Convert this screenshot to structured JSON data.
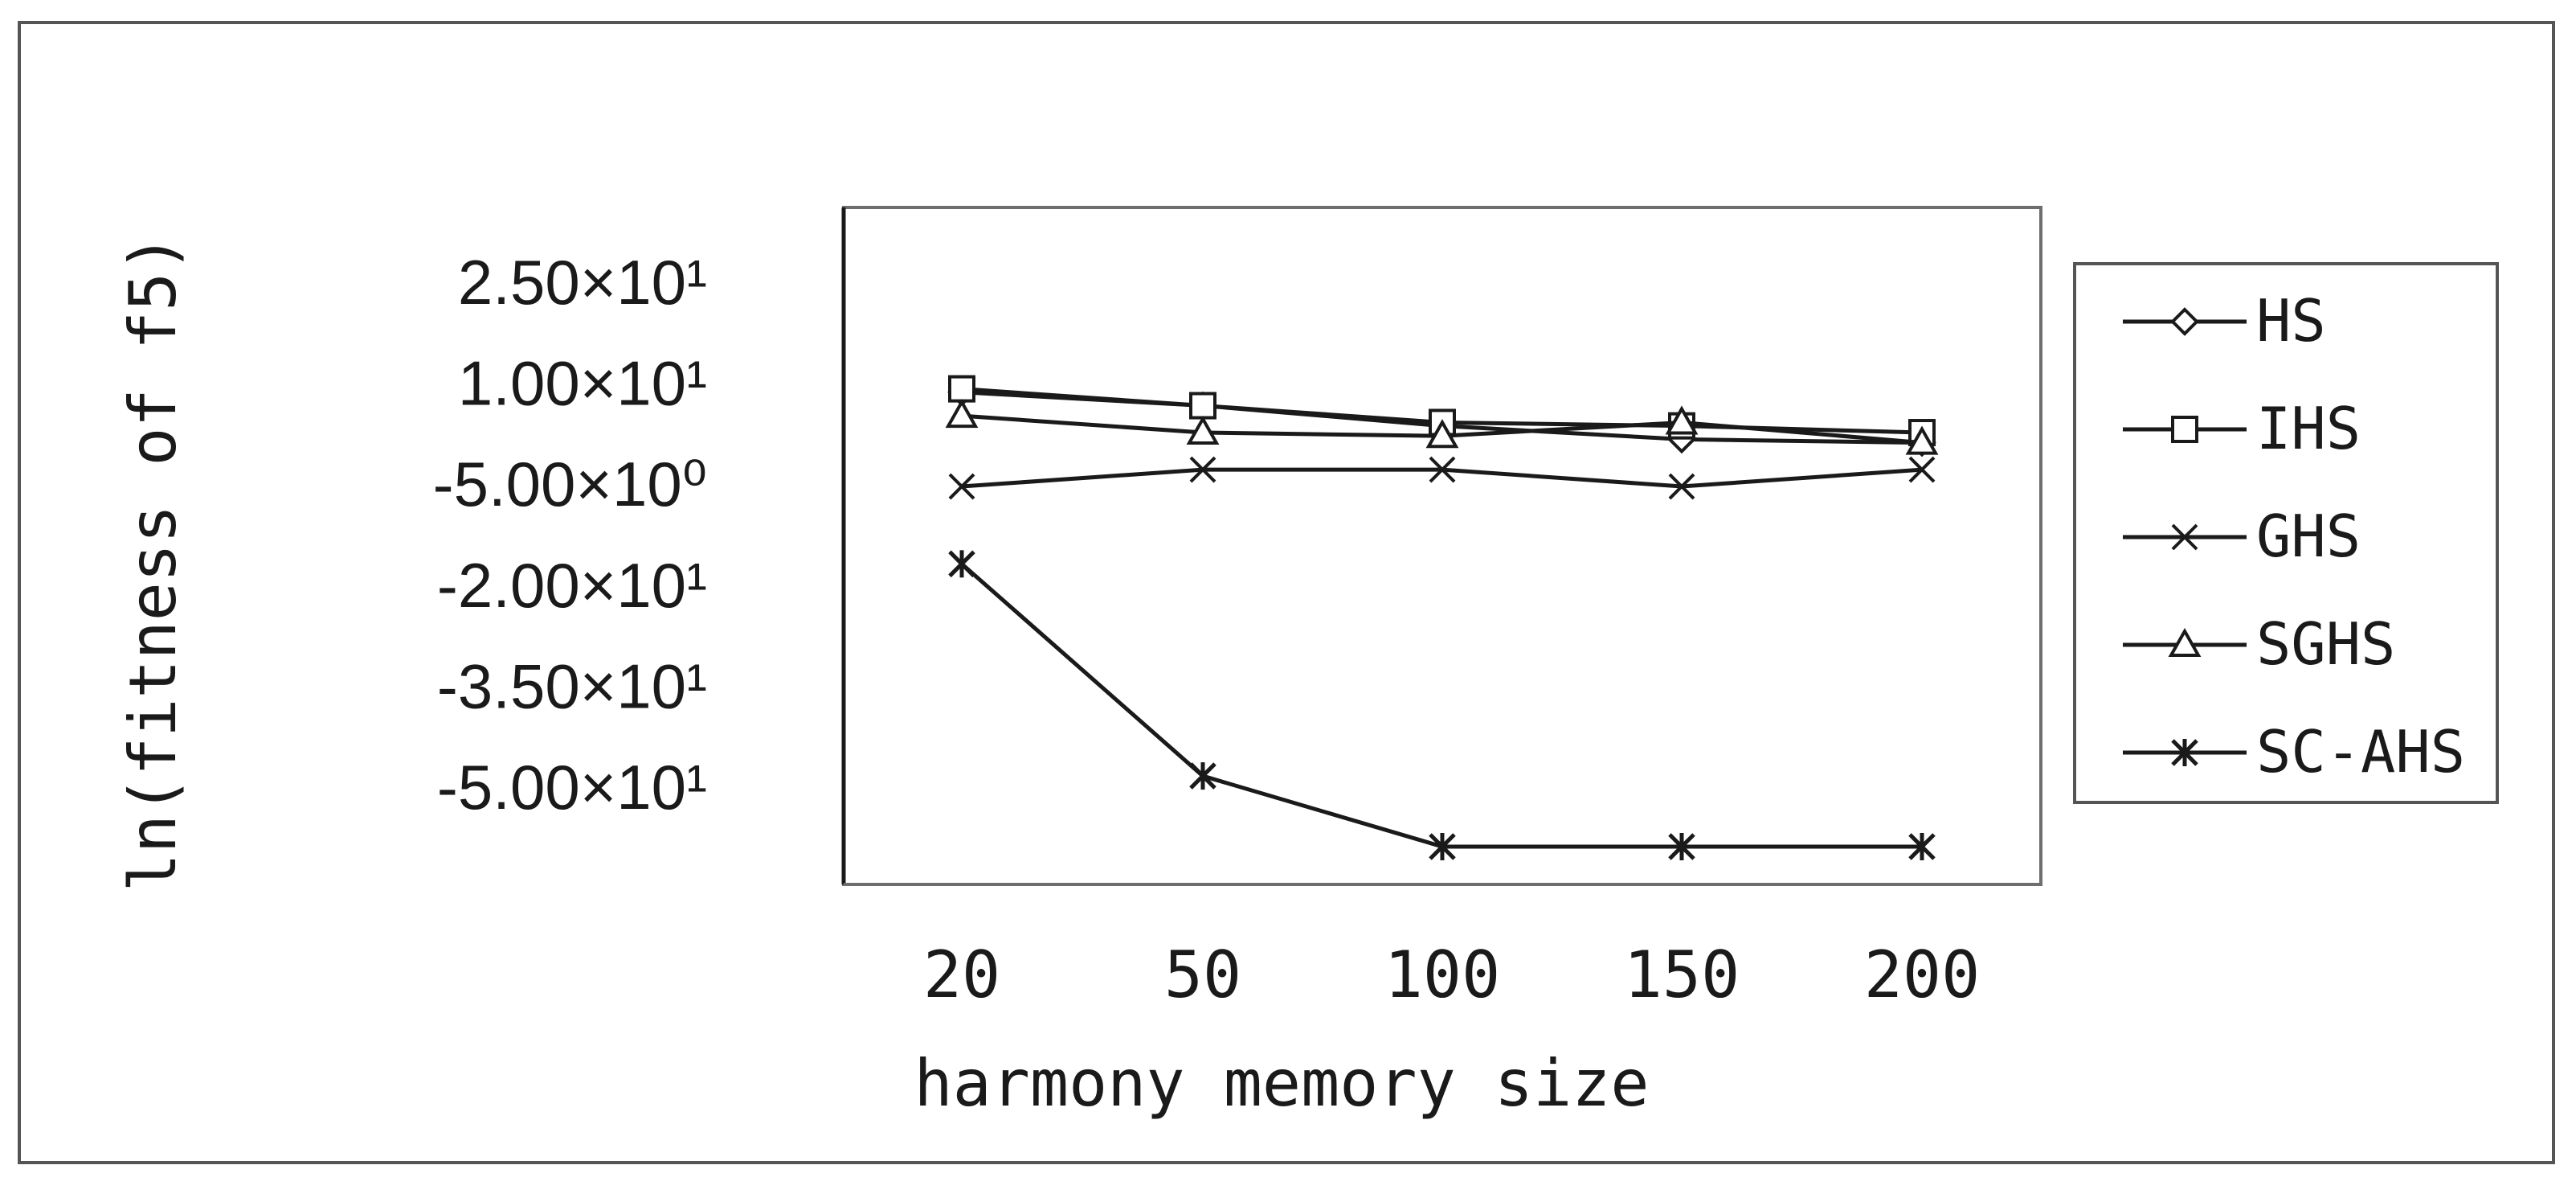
{
  "chart_data": {
    "type": "line",
    "xlabel": "harmony memory size",
    "ylabel": "ln(fitness of f5)",
    "categories": [
      "20",
      "50",
      "100",
      "150",
      "200"
    ],
    "y_ticks": [
      {
        "value": 25,
        "label": "2.50×10¹"
      },
      {
        "value": 10,
        "label": "1.00×10¹"
      },
      {
        "value": -5,
        "label": "-5.00×10⁰"
      },
      {
        "value": -20,
        "label": "-2.00×10¹"
      },
      {
        "value": -35,
        "label": "-3.50×10¹"
      },
      {
        "value": -50,
        "label": "-5.00×10¹"
      }
    ],
    "ylim": [
      -50,
      25
    ],
    "grid": false,
    "legend": "right",
    "series": [
      {
        "name": "HS",
        "marker": "diamond",
        "values": [
          17.5,
          15.5,
          12.5,
          10.5,
          10
        ]
      },
      {
        "name": "IHS",
        "marker": "square",
        "values": [
          18,
          15.5,
          13,
          12.5,
          11.5
        ]
      },
      {
        "name": "GHS",
        "marker": "cross",
        "values": [
          3.5,
          6,
          6,
          3.5,
          6
        ]
      },
      {
        "name": "SGHS",
        "marker": "triangle",
        "values": [
          14,
          11.5,
          11,
          13,
          10
        ]
      },
      {
        "name": "SC-AHS",
        "marker": "asterisk",
        "values": [
          -8,
          -39.5,
          -50,
          -50,
          -50
        ]
      }
    ]
  }
}
